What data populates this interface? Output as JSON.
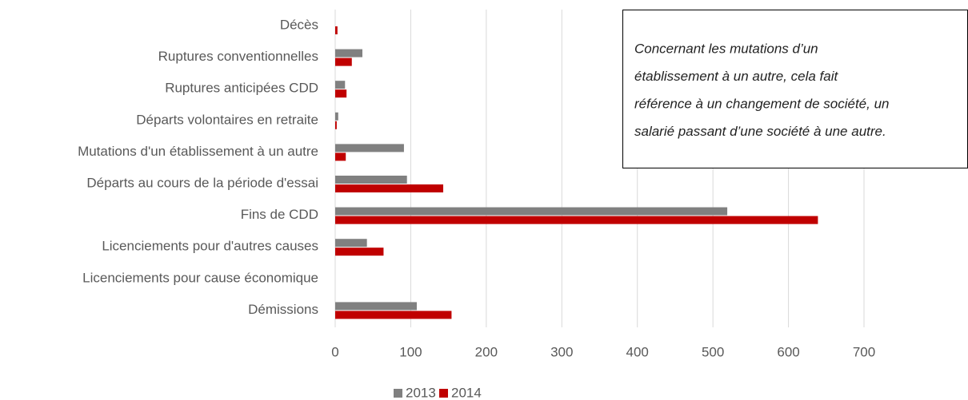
{
  "chart_data": {
    "type": "bar",
    "orientation": "horizontal",
    "categories": [
      "Décès",
      "Ruptures conventionnelles",
      "Ruptures anticipées CDD",
      "Départs volontaires en retraite",
      "Mutations d'un établissement à un autre",
      "Départs au cours de la période d'essai",
      "Fins de CDD",
      "Licenciements pour d'autres causes",
      "Licenciements pour cause économique",
      "Démissions"
    ],
    "series": [
      {
        "name": "2013",
        "color": "#808080",
        "values": [
          0,
          36,
          13,
          4,
          91,
          95,
          519,
          42,
          0,
          108
        ]
      },
      {
        "name": "2014",
        "color": "#c00000",
        "values": [
          3,
          22,
          15,
          2,
          14,
          143,
          639,
          64,
          0,
          154
        ]
      }
    ],
    "xlim": [
      0,
      700
    ],
    "xticks": [
      0,
      100,
      200,
      300,
      400,
      500,
      600,
      700
    ],
    "grid": true,
    "legend": "bottom",
    "annotation": [
      "Concernant les mutations d’un",
      "établissement à un autre, cela fait",
      "référence à un changement de société, un",
      "salarié passant d’une société à une autre."
    ]
  }
}
